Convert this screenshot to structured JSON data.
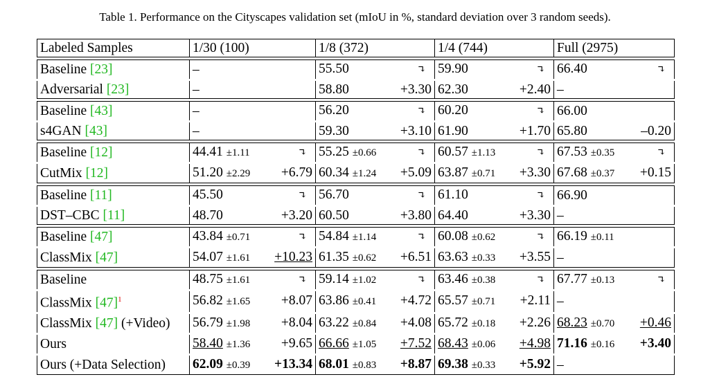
{
  "caption": "Table 1. Performance on the Cityscapes validation set (mIoU in %, standard deviation over 3 random seeds).",
  "header": [
    "Labeled Samples",
    "1/30 (100)",
    "1/8 (372)",
    "1/4 (744)",
    "Full (2975)"
  ],
  "arrow_glyph": "↴",
  "footnote_mark": "1",
  "groups": [
    {
      "rows": [
        {
          "name": "Baseline",
          "cite": "[23]",
          "cells": [
            {
              "v": "–"
            },
            {
              "v": "55.50",
              "d": "↴"
            },
            {
              "v": "59.90",
              "d": "↴"
            },
            {
              "v": "66.40",
              "d": "↴"
            }
          ]
        },
        {
          "name": "Adversarial",
          "cite": "[23]",
          "cells": [
            {
              "v": "–"
            },
            {
              "v": "58.80",
              "d": "+3.30"
            },
            {
              "v": "62.30",
              "d": "+2.40"
            },
            {
              "v": "–"
            }
          ]
        }
      ]
    },
    {
      "rows": [
        {
          "name": "Baseline",
          "cite": "[43]",
          "cells": [
            {
              "v": "–"
            },
            {
              "v": "56.20",
              "d": "↴"
            },
            {
              "v": "60.20",
              "d": "↴"
            },
            {
              "v": "66.00"
            }
          ]
        },
        {
          "name": "s4GAN",
          "cite": "[43]",
          "cells": [
            {
              "v": "–"
            },
            {
              "v": "59.30",
              "d": "+3.10"
            },
            {
              "v": "61.90",
              "d": "+1.70"
            },
            {
              "v": "65.80",
              "d": "–0.20"
            }
          ]
        }
      ]
    },
    {
      "rows": [
        {
          "name": "Baseline",
          "cite": "[12]",
          "cells": [
            {
              "v": "44.41",
              "s": "±1.11",
              "d": "↴"
            },
            {
              "v": "55.25",
              "s": "±0.66",
              "d": "↴"
            },
            {
              "v": "60.57",
              "s": "±1.13",
              "d": "↴"
            },
            {
              "v": "67.53",
              "s": "±0.35",
              "d": "↴"
            }
          ]
        },
        {
          "name": "CutMix",
          "cite": "[12]",
          "cells": [
            {
              "v": "51.20",
              "s": "±2.29",
              "d": "+6.79"
            },
            {
              "v": "60.34",
              "s": "±1.24",
              "d": "+5.09"
            },
            {
              "v": "63.87",
              "s": "±0.71",
              "d": "+3.30"
            },
            {
              "v": "67.68",
              "s": "±0.37",
              "d": "+0.15"
            }
          ]
        }
      ]
    },
    {
      "rows": [
        {
          "name": "Baseline",
          "cite": "[11]",
          "cells": [
            {
              "v": "45.50",
              "d": "↴"
            },
            {
              "v": "56.70",
              "d": "↴"
            },
            {
              "v": "61.10",
              "d": "↴"
            },
            {
              "v": "66.90"
            }
          ]
        },
        {
          "name": "DST–CBC",
          "cite": "[11]",
          "cells": [
            {
              "v": "48.70",
              "d": "+3.20"
            },
            {
              "v": "60.50",
              "d": "+3.80"
            },
            {
              "v": "64.40",
              "d": "+3.30"
            },
            {
              "v": "–"
            }
          ]
        }
      ]
    },
    {
      "rows": [
        {
          "name": "Baseline",
          "cite": "[47]",
          "cells": [
            {
              "v": "43.84",
              "s": "±0.71",
              "d": "↴"
            },
            {
              "v": "54.84",
              "s": "±1.14",
              "d": "↴"
            },
            {
              "v": "60.08",
              "s": "±0.62",
              "d": "↴"
            },
            {
              "v": "66.19",
              "s": "±0.11"
            }
          ]
        },
        {
          "name": "ClassMix",
          "cite": "[47]",
          "cells": [
            {
              "v": "54.07",
              "s": "±1.61",
              "d": "+10.23",
              "du": true
            },
            {
              "v": "61.35",
              "s": "±0.62",
              "d": "+6.51"
            },
            {
              "v": "63.63",
              "s": "±0.33",
              "d": "+3.55"
            },
            {
              "v": "–"
            }
          ]
        }
      ]
    },
    {
      "rows": [
        {
          "name": "Baseline",
          "cite": "",
          "cells": [
            {
              "v": "48.75",
              "s": "±1.61",
              "d": "↴"
            },
            {
              "v": "59.14",
              "s": "±1.02",
              "d": "↴"
            },
            {
              "v": "63.46",
              "s": "±0.38",
              "d": "↴"
            },
            {
              "v": "67.77",
              "s": "±0.13",
              "d": "↴"
            }
          ]
        },
        {
          "name": "ClassMix",
          "cite": "[47]",
          "fn": true,
          "cells": [
            {
              "v": "56.82",
              "s": "±1.65",
              "d": "+8.07"
            },
            {
              "v": "63.86",
              "s": "±0.41",
              "d": "+4.72"
            },
            {
              "v": "65.57",
              "s": "±0.71",
              "d": "+2.11"
            },
            {
              "v": "–"
            }
          ]
        },
        {
          "name": "ClassMix",
          "cite": "[47]",
          "suffix": " (+Video)",
          "cells": [
            {
              "v": "56.79",
              "s": "±1.98",
              "d": "+8.04"
            },
            {
              "v": "63.22",
              "s": "±0.84",
              "d": "+4.08"
            },
            {
              "v": "65.72",
              "s": "±0.18",
              "d": "+2.26"
            },
            {
              "v": "68.23",
              "s": "±0.70",
              "d": "+0.46",
              "vu": true,
              "du": true
            }
          ]
        },
        {
          "name": "Ours",
          "cite": "",
          "cells": [
            {
              "v": "58.40",
              "s": "±1.36",
              "d": "+9.65",
              "vu": true
            },
            {
              "v": "66.66",
              "s": "±1.05",
              "d": "+7.52",
              "vu": true,
              "du": true
            },
            {
              "v": "68.43",
              "s": "±0.06",
              "d": "+4.98",
              "vu": true,
              "du": true
            },
            {
              "v": "71.16",
              "s": "±0.16",
              "d": "+3.40",
              "vb": true,
              "db": true
            }
          ]
        },
        {
          "name": "Ours (+Data Selection)",
          "cite": "",
          "cells": [
            {
              "v": "62.09",
              "s": "±0.39",
              "d": "+13.34",
              "vb": true,
              "db": true
            },
            {
              "v": "68.01",
              "s": "±0.83",
              "d": "+8.87",
              "vb": true,
              "db": true
            },
            {
              "v": "69.38",
              "s": "±0.33",
              "d": "+5.92",
              "vb": true,
              "db": true
            },
            {
              "v": "–"
            }
          ]
        }
      ]
    }
  ]
}
